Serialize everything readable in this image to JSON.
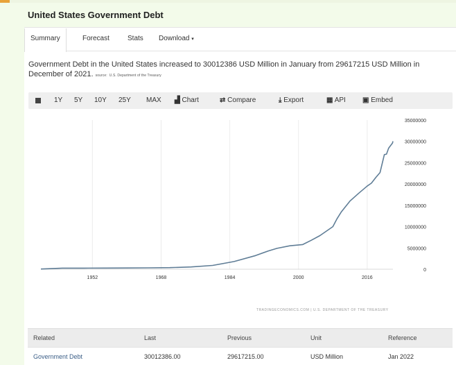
{
  "page": {
    "title": "United States Government Debt"
  },
  "tabs": [
    {
      "label": "Summary"
    },
    {
      "label": "Forecast"
    },
    {
      "label": "Stats"
    },
    {
      "label": "Download"
    }
  ],
  "description": {
    "text": "Government Debt in the United States increased to 30012386 USD Million in January from 29617215 USD Million in December of 2021.",
    "source_label": "source:",
    "source_name": "U.S. Department of the Treasury"
  },
  "toolbar": {
    "ranges": [
      "1Y",
      "5Y",
      "10Y",
      "25Y",
      "MAX"
    ],
    "chart_label": "Chart",
    "compare_label": "Compare",
    "export_label": "Export",
    "api_label": "API",
    "embed_label": "Embed"
  },
  "chart_data": {
    "type": "line",
    "title": "",
    "xlabel": "",
    "ylabel": "",
    "x_ticks": [
      1952,
      1968,
      1984,
      2000,
      2016
    ],
    "y_ticks": [
      0,
      5000000,
      10000000,
      15000000,
      20000000,
      25000000,
      30000000,
      35000000
    ],
    "xlim": [
      1940,
      2022
    ],
    "ylim": [
      0,
      35000000
    ],
    "y_axis_side": "right",
    "grid": true,
    "line_color": "#5f7d96",
    "series": [
      {
        "x": [
          1940,
          1945,
          1950,
          1955,
          1960,
          1965,
          1970,
          1975,
          1980,
          1985,
          1990,
          1993,
          1995,
          1998,
          2001,
          2003,
          2005,
          2008,
          2009,
          2010,
          2012,
          2014,
          2016,
          2017,
          2018,
          2019,
          2020,
          2020.5,
          2021,
          2021.9,
          2022.0
        ],
        "y": [
          50000,
          260000,
          257000,
          274000,
          290000,
          320000,
          380000,
          530000,
          900000,
          1800000,
          3200000,
          4300000,
          4900000,
          5500000,
          5800000,
          6800000,
          7900000,
          10000000,
          11900000,
          13500000,
          16000000,
          17800000,
          19500000,
          20200000,
          21500000,
          22700000,
          26900000,
          27000000,
          28400000,
          29617215,
          30012386
        ]
      }
    ],
    "watermark": "TRADINGECONOMICS.COM | U.S. DEPARTMENT OF THE TREASURY"
  },
  "table": {
    "headers": [
      "Related",
      "Last",
      "Previous",
      "Unit",
      "Reference"
    ],
    "rows": [
      [
        "Government Debt",
        "30012386.00",
        "29617215.00",
        "USD Million",
        "Jan 2022"
      ]
    ]
  }
}
